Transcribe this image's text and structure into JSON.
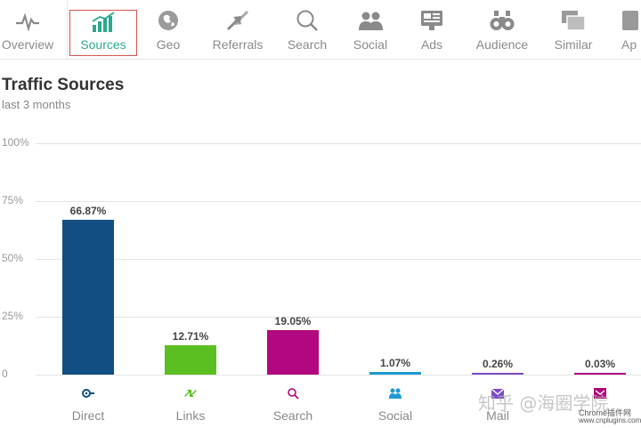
{
  "nav": {
    "items": [
      {
        "label": "Overview",
        "icon": "pulse-icon"
      },
      {
        "label": "Sources",
        "icon": "bar-trend-icon",
        "active": true
      },
      {
        "label": "Geo",
        "icon": "globe-icon"
      },
      {
        "label": "Referrals",
        "icon": "arrows-icon"
      },
      {
        "label": "Search",
        "icon": "magnifier-icon"
      },
      {
        "label": "Social",
        "icon": "people-icon"
      },
      {
        "label": "Ads",
        "icon": "ad-icon"
      },
      {
        "label": "Audience",
        "icon": "binoculars-icon"
      },
      {
        "label": "Similar",
        "icon": "similar-icon"
      },
      {
        "label": "Ap",
        "icon": "apps-icon"
      }
    ],
    "active_color": "#2aa98f",
    "highlight_color": "#d9534f"
  },
  "page": {
    "title": "Traffic Sources",
    "subtitle": "last 3 months"
  },
  "chart_data": {
    "type": "bar",
    "title": "Traffic Sources",
    "subtitle": "last 3 months",
    "categories": [
      "Direct",
      "Links",
      "Search",
      "Social",
      "Mail",
      ""
    ],
    "values": [
      66.87,
      12.71,
      19.05,
      1.07,
      0.26,
      0.03
    ],
    "value_labels": [
      "66.87%",
      "12.71%",
      "19.05%",
      "1.07%",
      "0.26%",
      "0.03%"
    ],
    "colors": [
      "#114f82",
      "#5bbf21",
      "#b1077f",
      "#1d9ad6",
      "#7d4bc9",
      "#b1077f"
    ],
    "yticks": [
      "100%",
      "75%",
      "50%",
      "25%",
      "0"
    ],
    "ylim": [
      0,
      100
    ],
    "grid": true,
    "xlabel": "",
    "ylabel": ""
  },
  "watermark": {
    "zh": "知乎 @海圈学院",
    "en1": "Chrome插件网",
    "en2": "www.cnplugins.com"
  }
}
